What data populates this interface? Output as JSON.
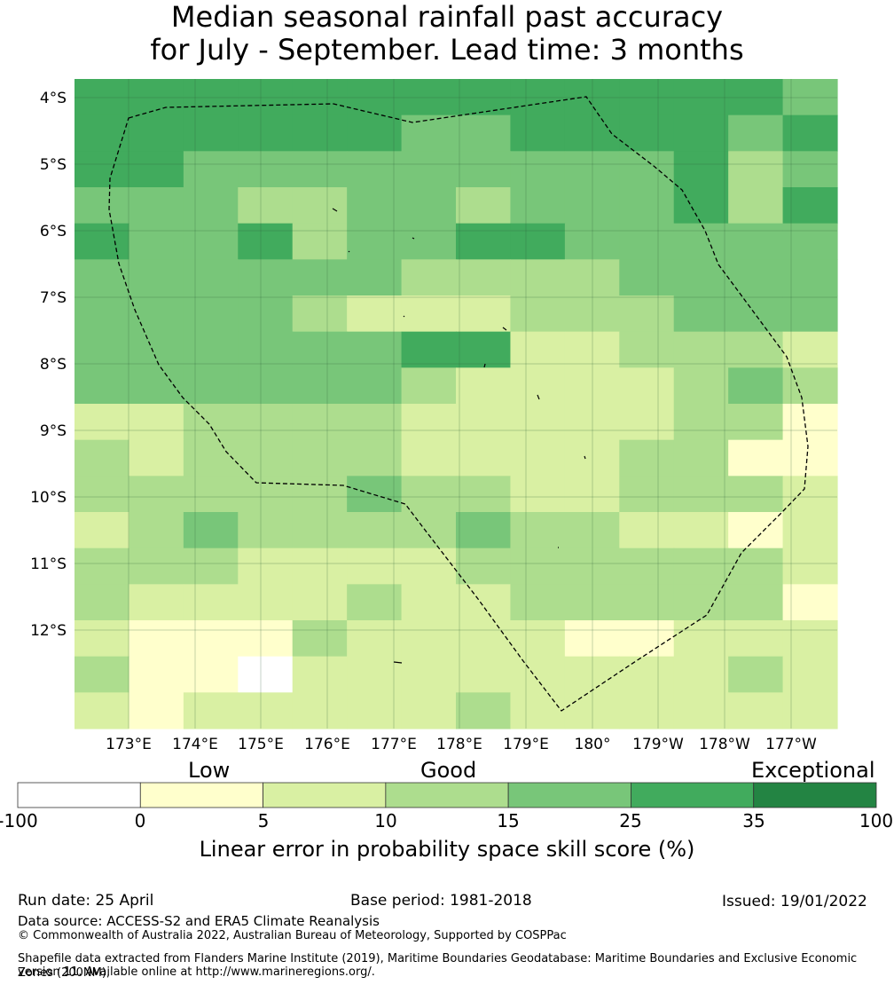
{
  "title_line1": "Median seasonal rainfall past accuracy",
  "title_line2": "for July - September. Lead time: 3 months",
  "map": {
    "lat_labels": [
      "4°S",
      "5°S",
      "6°S",
      "7°S",
      "8°S",
      "9°S",
      "10°S",
      "11°S",
      "12°S"
    ],
    "lon_labels": [
      "173°E",
      "174°E",
      "175°E",
      "176°E",
      "177°E",
      "178°E",
      "179°E",
      "180°",
      "179°W",
      "178°W",
      "177°W"
    ],
    "grid_cols": 14,
    "grid_rows": 18,
    "grid_levels": [
      "55555555555554",
      "55555544555545",
      "55444444444534",
      "44433443444535",
      "54453445544444",
      "44444433334444",
      "44443222333444",
      "44444455223332",
      "44444432222343",
      "22333322222331",
      "32333322223311",
      "33333433223332",
      "23433334332212",
      "33322223333332",
      "32222322333331",
      "21113222211222",
      "31102222222232",
      "21222223222222"
    ],
    "color_levels": [
      "#ffffff",
      "#ffffcc",
      "#d9f0a3",
      "#addd8e",
      "#78c679",
      "#41ab5d",
      "#238443"
    ]
  },
  "colorbar": {
    "category_labels": [
      "Low",
      "Good",
      "Exceptional"
    ],
    "ticks": [
      "-100",
      "0",
      "5",
      "10",
      "15",
      "25",
      "35",
      "100"
    ],
    "colors": [
      "#ffffff",
      "#ffffcc",
      "#d9f0a3",
      "#addd8e",
      "#78c679",
      "#41ab5d",
      "#238443"
    ],
    "title": "Linear error in probability space skill score (%)"
  },
  "footer": {
    "run_date": "Run date: 25 April",
    "base_period": "Base period: 1981-2018",
    "issued": "Issued: 19/01/2022",
    "data_source": "Data source: ACCESS-S2 and ERA5 Climate Reanalysis",
    "copyright": "© Commonwealth of Australia 2022, Australian Bureau of Meteorology, Supported by COSPPac",
    "shapefile_line1": "Shapefile data extracted from Flanders Marine Institute (2019), Maritime Boundaries Geodatabase: Maritime Boundaries and Exclusive Economic Zones (200NM),",
    "shapefile_line2": "version 11. Available online at http://www.marineregions.org/."
  }
}
